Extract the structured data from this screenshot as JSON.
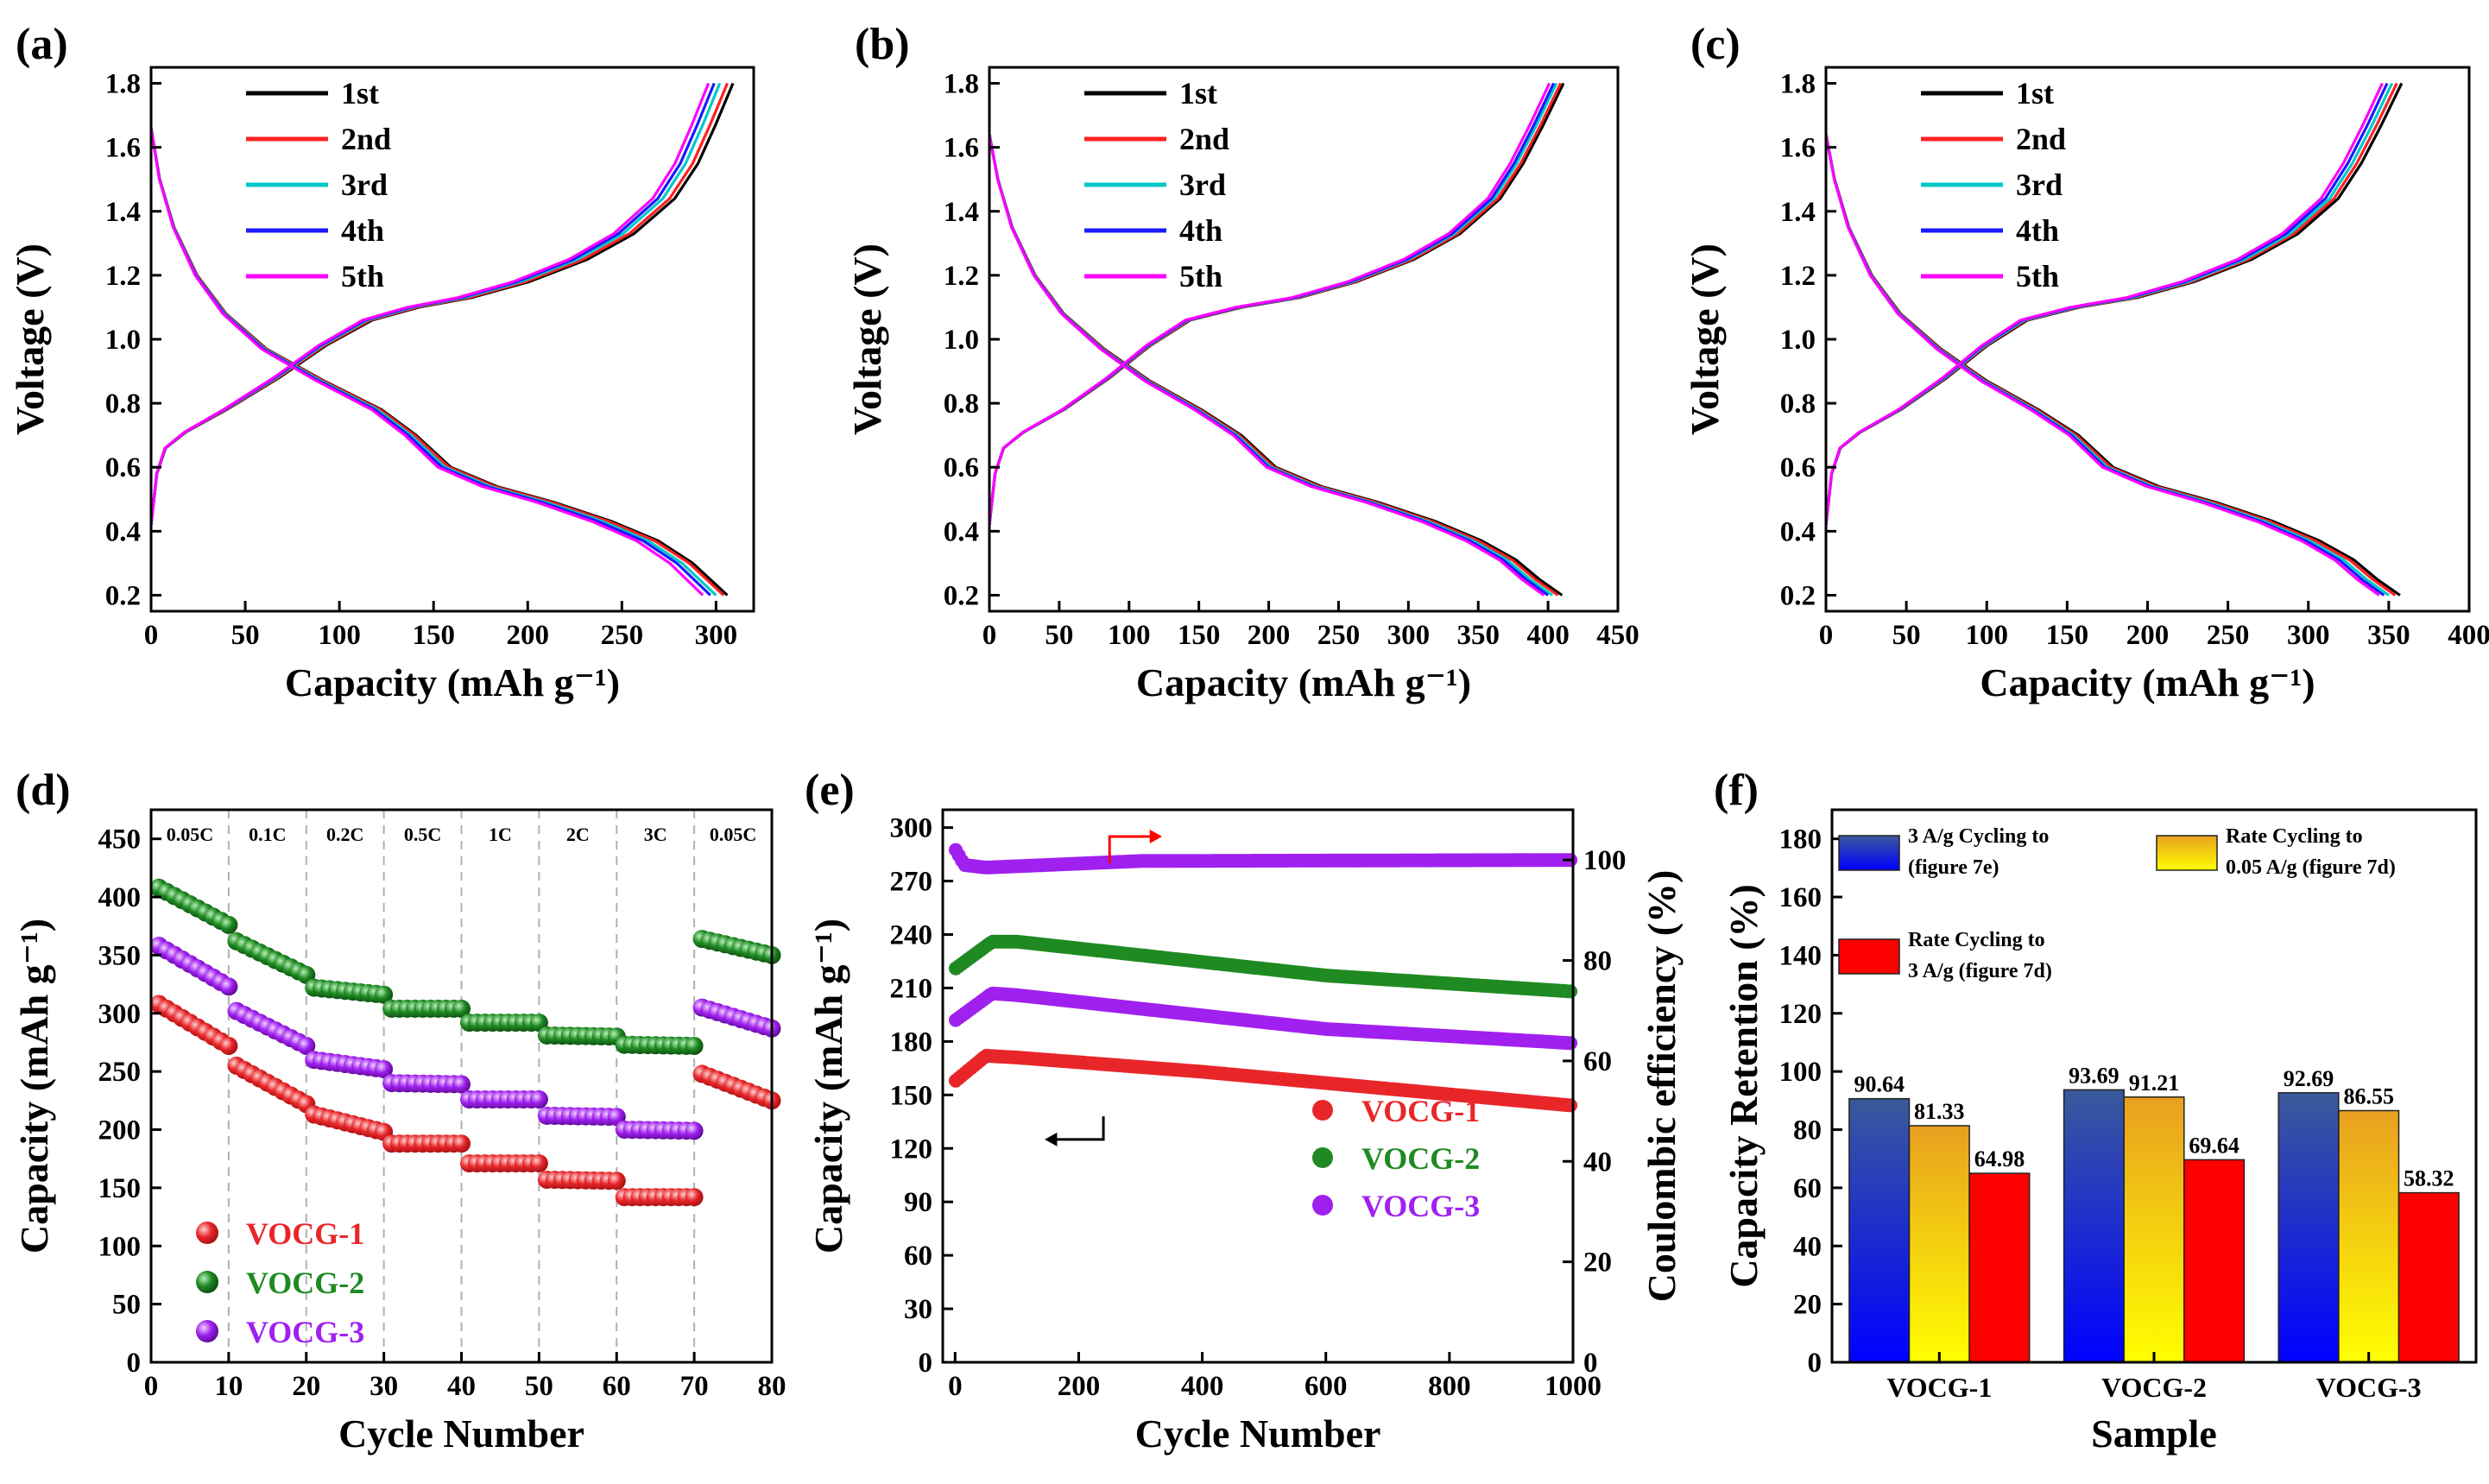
{
  "chart_data": [
    {
      "id": "a",
      "type": "line",
      "panel_label": "(a)",
      "xlabel": "Capacity (mAh g⁻¹)",
      "ylabel": "Voltage (V)",
      "xlim": [
        0,
        320
      ],
      "ylim": [
        0.15,
        1.85
      ],
      "xticks": [
        0,
        50,
        100,
        150,
        200,
        250,
        300
      ],
      "yticks": [
        0.2,
        0.4,
        0.6,
        0.8,
        1.0,
        1.2,
        1.4,
        1.6,
        1.8
      ],
      "legend": [
        "1st",
        "2nd",
        "3rd",
        "4th",
        "5th"
      ],
      "colors": [
        "#000000",
        "#ff2020",
        "#00c8c8",
        "#1a1aff",
        "#ff00ff"
      ],
      "discharge_shape": [
        [
          0,
          1.66
        ],
        [
          0.015,
          1.5
        ],
        [
          0.04,
          1.35
        ],
        [
          0.08,
          1.2
        ],
        [
          0.13,
          1.08
        ],
        [
          0.2,
          0.97
        ],
        [
          0.3,
          0.87
        ],
        [
          0.4,
          0.78
        ],
        [
          0.46,
          0.7
        ],
        [
          0.52,
          0.6
        ],
        [
          0.6,
          0.54
        ],
        [
          0.7,
          0.49
        ],
        [
          0.8,
          0.43
        ],
        [
          0.88,
          0.37
        ],
        [
          0.94,
          0.3
        ],
        [
          0.97,
          0.25
        ],
        [
          1.0,
          0.2
        ]
      ],
      "charge_shape": [
        [
          0,
          0.42
        ],
        [
          0.01,
          0.58
        ],
        [
          0.025,
          0.66
        ],
        [
          0.06,
          0.71
        ],
        [
          0.13,
          0.78
        ],
        [
          0.22,
          0.88
        ],
        [
          0.3,
          0.98
        ],
        [
          0.38,
          1.06
        ],
        [
          0.46,
          1.1
        ],
        [
          0.55,
          1.13
        ],
        [
          0.65,
          1.18
        ],
        [
          0.75,
          1.25
        ],
        [
          0.83,
          1.33
        ],
        [
          0.9,
          1.44
        ],
        [
          0.94,
          1.55
        ],
        [
          0.97,
          1.67
        ],
        [
          1.0,
          1.8
        ]
      ],
      "discharge_capacity": [
        306,
        304,
        300,
        297,
        293
      ],
      "charge_capacity": [
        309,
        306,
        302,
        299,
        296
      ]
    },
    {
      "id": "b",
      "type": "line",
      "panel_label": "(b)",
      "xlabel": "Capacity (mAh g⁻¹)",
      "ylabel": "Voltage (V)",
      "xlim": [
        0,
        450
      ],
      "ylim": [
        0.15,
        1.85
      ],
      "xticks": [
        0,
        50,
        100,
        150,
        200,
        250,
        300,
        350,
        400,
        450
      ],
      "yticks": [
        0.2,
        0.4,
        0.6,
        0.8,
        1.0,
        1.2,
        1.4,
        1.6,
        1.8
      ],
      "legend": [
        "1st",
        "2nd",
        "3rd",
        "4th",
        "5th"
      ],
      "colors": [
        "#000000",
        "#ff2020",
        "#00c8c8",
        "#1a1aff",
        "#ff00ff"
      ],
      "discharge_shape": [
        [
          0,
          1.64
        ],
        [
          0.015,
          1.5
        ],
        [
          0.04,
          1.35
        ],
        [
          0.08,
          1.2
        ],
        [
          0.13,
          1.08
        ],
        [
          0.2,
          0.97
        ],
        [
          0.28,
          0.87
        ],
        [
          0.37,
          0.78
        ],
        [
          0.44,
          0.7
        ],
        [
          0.5,
          0.6
        ],
        [
          0.58,
          0.54
        ],
        [
          0.68,
          0.49
        ],
        [
          0.78,
          0.43
        ],
        [
          0.86,
          0.37
        ],
        [
          0.92,
          0.31
        ],
        [
          0.96,
          0.25
        ],
        [
          1.0,
          0.2
        ]
      ],
      "charge_shape": [
        [
          0,
          0.42
        ],
        [
          0.01,
          0.58
        ],
        [
          0.025,
          0.66
        ],
        [
          0.06,
          0.71
        ],
        [
          0.13,
          0.78
        ],
        [
          0.21,
          0.88
        ],
        [
          0.28,
          0.98
        ],
        [
          0.35,
          1.06
        ],
        [
          0.44,
          1.1
        ],
        [
          0.54,
          1.13
        ],
        [
          0.64,
          1.18
        ],
        [
          0.74,
          1.25
        ],
        [
          0.82,
          1.33
        ],
        [
          0.89,
          1.44
        ],
        [
          0.93,
          1.55
        ],
        [
          0.965,
          1.67
        ],
        [
          1.0,
          1.8
        ]
      ],
      "discharge_capacity": [
        410,
        407,
        403,
        400,
        397
      ],
      "charge_capacity": [
        411,
        409,
        406,
        404,
        401
      ]
    },
    {
      "id": "c",
      "type": "line",
      "panel_label": "(c)",
      "xlabel": "Capacity (mAh g⁻¹)",
      "ylabel": "Voltage (V)",
      "xlim": [
        0,
        400
      ],
      "ylim": [
        0.15,
        1.85
      ],
      "xticks": [
        0,
        50,
        100,
        150,
        200,
        250,
        300,
        350,
        400
      ],
      "yticks": [
        0.2,
        0.4,
        0.6,
        0.8,
        1.0,
        1.2,
        1.4,
        1.6,
        1.8
      ],
      "legend": [
        "1st",
        "2nd",
        "3rd",
        "4th",
        "5th"
      ],
      "colors": [
        "#000000",
        "#ff2020",
        "#00c8c8",
        "#1a1aff",
        "#ff00ff"
      ],
      "discharge_shape": [
        [
          0,
          1.64
        ],
        [
          0.015,
          1.5
        ],
        [
          0.04,
          1.35
        ],
        [
          0.08,
          1.2
        ],
        [
          0.13,
          1.08
        ],
        [
          0.2,
          0.97
        ],
        [
          0.28,
          0.87
        ],
        [
          0.37,
          0.78
        ],
        [
          0.44,
          0.7
        ],
        [
          0.5,
          0.6
        ],
        [
          0.58,
          0.54
        ],
        [
          0.68,
          0.49
        ],
        [
          0.78,
          0.43
        ],
        [
          0.86,
          0.37
        ],
        [
          0.92,
          0.31
        ],
        [
          0.96,
          0.25
        ],
        [
          1.0,
          0.2
        ]
      ],
      "charge_shape": [
        [
          0,
          0.42
        ],
        [
          0.01,
          0.58
        ],
        [
          0.025,
          0.66
        ],
        [
          0.06,
          0.71
        ],
        [
          0.13,
          0.78
        ],
        [
          0.21,
          0.88
        ],
        [
          0.28,
          0.98
        ],
        [
          0.35,
          1.06
        ],
        [
          0.44,
          1.1
        ],
        [
          0.54,
          1.13
        ],
        [
          0.64,
          1.18
        ],
        [
          0.74,
          1.25
        ],
        [
          0.82,
          1.33
        ],
        [
          0.89,
          1.44
        ],
        [
          0.93,
          1.55
        ],
        [
          0.965,
          1.67
        ],
        [
          1.0,
          1.8
        ]
      ],
      "discharge_capacity": [
        357,
        354,
        350,
        347,
        344
      ],
      "charge_capacity": [
        358,
        355,
        352,
        349,
        346
      ]
    },
    {
      "id": "d",
      "type": "scatter",
      "panel_label": "(d)",
      "xlabel": "Cycle Number",
      "ylabel": "Capacity (mAh g⁻¹)",
      "xlim": [
        0,
        80
      ],
      "ylim": [
        0,
        475
      ],
      "xticks": [
        0,
        10,
        20,
        30,
        40,
        50,
        60,
        70,
        80
      ],
      "yticks": [
        0,
        50,
        100,
        150,
        200,
        250,
        300,
        350,
        400,
        450
      ],
      "rate_regions": [
        "0.05C",
        "0.1C",
        "0.2C",
        "0.5C",
        "1C",
        "2C",
        "3C",
        "0.05C"
      ],
      "region_boundaries": [
        10,
        20,
        30,
        40,
        50,
        60,
        70
      ],
      "series": [
        {
          "name": "VOCG-1",
          "color": "#e8262a",
          "segments": [
            [
              1,
              10,
              308,
              272
            ],
            [
              11,
              20,
              255,
              222
            ],
            [
              21,
              30,
              213,
              198
            ],
            [
              31,
              40,
              188,
              188
            ],
            [
              41,
              50,
              171,
              171
            ],
            [
              51,
              60,
              157,
              156
            ],
            [
              61,
              70,
              142,
              142
            ],
            [
              71,
              80,
              248,
              225
            ]
          ]
        },
        {
          "name": "VOCG-2",
          "color": "#1f8a22",
          "segments": [
            [
              1,
              10,
              408,
              376
            ],
            [
              11,
              20,
              362,
              333
            ],
            [
              21,
              30,
              322,
              316
            ],
            [
              31,
              40,
              304,
              304
            ],
            [
              41,
              50,
              292,
              292
            ],
            [
              51,
              60,
              281,
              280
            ],
            [
              61,
              70,
              273,
              272
            ],
            [
              71,
              80,
              364,
              350
            ]
          ]
        },
        {
          "name": "VOCG-3",
          "color": "#a020f0",
          "segments": [
            [
              1,
              10,
              358,
              323
            ],
            [
              11,
              20,
              302,
              272
            ],
            [
              21,
              30,
              260,
              252
            ],
            [
              31,
              40,
              240,
              239
            ],
            [
              41,
              50,
              226,
              226
            ],
            [
              51,
              60,
              212,
              211
            ],
            [
              61,
              70,
              200,
              199
            ],
            [
              71,
              80,
              305,
              287
            ]
          ]
        }
      ]
    },
    {
      "id": "e",
      "type": "scatter",
      "panel_label": "(e)",
      "xlabel": "Cycle Number",
      "ylabel": "Capacity (mAh g⁻¹)",
      "y2label": "Coulombic efficiency (%)",
      "xlim": [
        -20,
        1000
      ],
      "ylim": [
        0,
        310
      ],
      "y2lim": [
        0,
        110
      ],
      "xticks": [
        0,
        200,
        400,
        600,
        800,
        1000
      ],
      "yticks": [
        0,
        30,
        60,
        90,
        120,
        150,
        180,
        210,
        240,
        270,
        300
      ],
      "y2ticks": [
        0,
        20,
        40,
        60,
        80,
        100
      ],
      "series": [
        {
          "name": "VOCG-1",
          "color": "#e8262a",
          "points": [
            [
              1,
              158
            ],
            [
              50,
              172
            ],
            [
              100,
              171
            ],
            [
              400,
              163
            ],
            [
              1000,
              144
            ]
          ]
        },
        {
          "name": "VOCG-2",
          "color": "#1f8a22",
          "points": [
            [
              1,
              221
            ],
            [
              60,
              236
            ],
            [
              100,
              236
            ],
            [
              600,
              217
            ],
            [
              1000,
              208
            ]
          ]
        },
        {
          "name": "VOCG-3",
          "color": "#a020f0",
          "points": [
            [
              1,
              192
            ],
            [
              60,
              207
            ],
            [
              100,
              206
            ],
            [
              600,
              187
            ],
            [
              1000,
              179
            ]
          ]
        },
        {
          "name": "Coulombic efficiency",
          "color": "#a020f0",
          "axis": "right",
          "points": [
            [
              1,
              102
            ],
            [
              15,
              99
            ],
            [
              50,
              98.5
            ],
            [
              300,
              99.8
            ],
            [
              1000,
              100
            ]
          ]
        }
      ]
    },
    {
      "id": "f",
      "type": "bar",
      "panel_label": "(f)",
      "xlabel": "Sample",
      "ylabel": "Capacity Retention (%)",
      "ylim": [
        0,
        190
      ],
      "yticks": [
        0,
        20,
        40,
        60,
        80,
        100,
        120,
        140,
        160,
        180
      ],
      "categories": [
        "VOCG-1",
        "VOCG-2",
        "VOCG-3"
      ],
      "series": [
        {
          "name": "3 A/g Cycling to (figure 7e)",
          "legend_lines": [
            "3 A/g Cycling to",
            "(figure 7e)"
          ],
          "values": [
            90.64,
            93.69,
            92.69
          ],
          "labels": [
            "90.64",
            "93.69",
            "92.69"
          ],
          "color_top": "#3a5a9a",
          "color_bottom": "#0000ff"
        },
        {
          "name": "Rate Cycling to 0.05 A/g (figure 7d)",
          "legend_lines": [
            "Rate Cycling to",
            "0.05 A/g (figure 7d)"
          ],
          "values": [
            81.33,
            91.21,
            86.55
          ],
          "labels": [
            "81.33",
            "91.21",
            "86.55"
          ],
          "color_top": "#e8a020",
          "color_bottom": "#ffff00"
        },
        {
          "name": "Rate Cycling to 3 A/g (figure 7d)",
          "legend_lines": [
            "Rate Cycling to",
            "3 A/g (figure 7d)"
          ],
          "values": [
            64.98,
            69.64,
            58.32
          ],
          "labels": [
            "64.98",
            "69.64",
            "58.32"
          ],
          "color_top": "#ff0000",
          "color_bottom": "#ff0000"
        }
      ]
    }
  ]
}
